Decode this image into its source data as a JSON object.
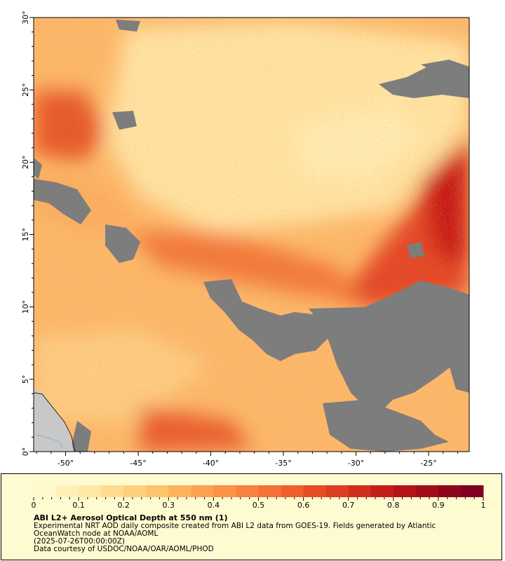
{
  "map": {
    "lat_labels": [
      "0°",
      "5°",
      "10°",
      "15°",
      "20°",
      "25°",
      "30°"
    ],
    "lon_labels": [
      "-50°",
      "-45°",
      "-40°",
      "-35°",
      "-30°",
      "-25°"
    ],
    "extent": {
      "lon_min": -52.2,
      "lon_max": -22.2,
      "lat_min": 0,
      "lat_max": 30
    },
    "colors": {
      "no_data": "#7d7d7d",
      "land": "#c8c8c8",
      "river": "#8fb0d6",
      "aod_low": "#ffe7a4",
      "aod_mid": "#fb9b4c",
      "aod_high": "#c81c17"
    }
  },
  "legend": {
    "tick_labels": [
      "0",
      "0.1",
      "0.2",
      "0.3",
      "0.4",
      "0.5",
      "0.6",
      "0.7",
      "0.8",
      "0.9",
      "1"
    ],
    "colors": [
      "#fffacd",
      "#fff0b8",
      "#ffe7a4",
      "#ffdc90",
      "#fed07d",
      "#fdc46c",
      "#fdb25c",
      "#fca250",
      "#fb9246",
      "#f9823e",
      "#f47036",
      "#ef5f2e",
      "#e64d27",
      "#dd3d21",
      "#d22d1c",
      "#c41e18",
      "#b31416",
      "#a00c17",
      "#8e0617",
      "#7f0020"
    ],
    "title": "ABI L2+ Aerosol Optical Depth at 550 nm (1)",
    "description_line1": "Experimental NRT AOD daily composite created from ABI L2 data from GOES-19. Fields generated by Atlantic",
    "description_line2": "OceanWatch node at NOAA/AOML",
    "timestamp": "(2025-07-26T00:00:00Z)",
    "credit": "Data courtesy of USDOC/NOAA/OAR/AOML/PHOD"
  }
}
